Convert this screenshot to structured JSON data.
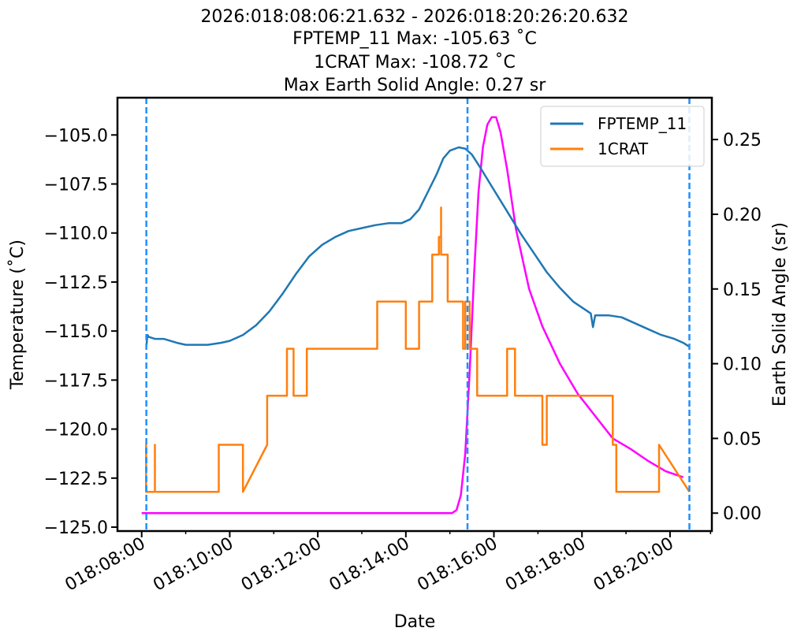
{
  "chart_data": {
    "type": "line",
    "title_lines": [
      "2026:018:08:06:21.632 - 2026:018:20:26:20.632",
      "FPTEMP_11 Max: -105.63 ˚C",
      "1CRAT Max: -108.72 ˚C",
      "Max Earth Solid Angle: 0.27 sr"
    ],
    "xlabel": "Date",
    "ylabel_left": "Temperature (˚C)",
    "ylabel_right": "Earth Solid Angle (sr)",
    "x_unit": "hours of day 018",
    "xlim": [
      7.45,
      20.95
    ],
    "ylim_left": [
      -125.2,
      -103.1
    ],
    "ylim_right": [
      -0.012,
      0.278
    ],
    "x_ticks": [
      {
        "v": 8,
        "label": "018:08:00"
      },
      {
        "v": 10,
        "label": "018:10:00"
      },
      {
        "v": 12,
        "label": "018:12:00"
      },
      {
        "v": 14,
        "label": "018:14:00"
      },
      {
        "v": 16,
        "label": "018:16:00"
      },
      {
        "v": 18,
        "label": "018:18:00"
      },
      {
        "v": 20,
        "label": "018:20:00"
      }
    ],
    "y_ticks_left": [
      {
        "v": -105.0,
        "label": "−105.0"
      },
      {
        "v": -107.5,
        "label": "−107.5"
      },
      {
        "v": -110.0,
        "label": "−110.0"
      },
      {
        "v": -112.5,
        "label": "−112.5"
      },
      {
        "v": -115.0,
        "label": "−115.0"
      },
      {
        "v": -117.5,
        "label": "−117.5"
      },
      {
        "v": -120.0,
        "label": "−120.0"
      },
      {
        "v": -122.5,
        "label": "−122.5"
      },
      {
        "v": -125.0,
        "label": "−125.0"
      }
    ],
    "y_ticks_right": [
      {
        "v": 0.0,
        "label": "0.00"
      },
      {
        "v": 0.05,
        "label": "0.05"
      },
      {
        "v": 0.1,
        "label": "0.10"
      },
      {
        "v": 0.15,
        "label": "0.15"
      },
      {
        "v": 0.2,
        "label": "0.20"
      },
      {
        "v": 0.25,
        "label": "0.25"
      }
    ],
    "vlines": [
      8.106,
      15.4,
      20.44
    ],
    "legend": {
      "placement": "top-right",
      "entries": [
        "FPTEMP_11",
        "1CRAT"
      ]
    },
    "series": [
      {
        "name": "FPTEMP_11",
        "axis": "left",
        "color": "#1f77b4",
        "x": [
          8.11,
          8.13,
          8.16,
          8.3,
          8.5,
          8.8,
          9.0,
          9.5,
          9.8,
          10.0,
          10.3,
          10.6,
          10.9,
          11.2,
          11.5,
          11.8,
          12.1,
          12.4,
          12.7,
          13.0,
          13.3,
          13.6,
          13.9,
          14.1,
          14.3,
          14.5,
          14.7,
          14.85,
          15.0,
          15.2,
          15.35,
          15.5,
          15.7,
          16.0,
          16.3,
          16.6,
          16.9,
          17.2,
          17.5,
          17.8,
          18.0,
          18.2,
          18.25,
          18.3,
          18.6,
          18.9,
          19.2,
          19.5,
          19.8,
          20.1,
          20.3,
          20.44
        ],
        "y": [
          -115.7,
          -115.2,
          -115.3,
          -115.4,
          -115.4,
          -115.6,
          -115.7,
          -115.7,
          -115.6,
          -115.5,
          -115.2,
          -114.7,
          -114.0,
          -113.1,
          -112.1,
          -111.2,
          -110.6,
          -110.2,
          -109.9,
          -109.75,
          -109.6,
          -109.5,
          -109.5,
          -109.3,
          -108.8,
          -107.9,
          -107.0,
          -106.2,
          -105.8,
          -105.63,
          -105.7,
          -106.0,
          -106.7,
          -107.8,
          -108.9,
          -110.0,
          -111.0,
          -112.0,
          -112.8,
          -113.5,
          -113.8,
          -114.1,
          -114.8,
          -114.2,
          -114.2,
          -114.3,
          -114.6,
          -114.9,
          -115.2,
          -115.4,
          -115.6,
          -115.8
        ]
      },
      {
        "name": "1CRAT",
        "axis": "left",
        "color": "#ff7f0e",
        "x": [
          8.1,
          8.1,
          8.1,
          8.3,
          8.3,
          8.3,
          9.75,
          9.75,
          10.3,
          10.3,
          10.85,
          10.85,
          11.3,
          11.3,
          11.45,
          11.45,
          11.75,
          11.75,
          13.35,
          13.35,
          14.0,
          14.0,
          14.3,
          14.3,
          14.6,
          14.6,
          14.75,
          14.75,
          14.8,
          14.8,
          14.8,
          14.95,
          14.95,
          15.3,
          15.3,
          15.35,
          15.35,
          15.45,
          15.45,
          15.62,
          15.62,
          16.3,
          16.3,
          16.48,
          16.48,
          17.1,
          17.1,
          17.2,
          17.2,
          18.7,
          18.7,
          18.78,
          18.78,
          19.75,
          19.75,
          20.44
        ],
        "y": [
          -123.2,
          -120.8,
          -123.2,
          -123.2,
          -120.8,
          -123.2,
          -123.2,
          -120.8,
          -120.8,
          -123.2,
          -120.8,
          -118.3,
          -118.3,
          -115.9,
          -115.9,
          -118.3,
          -118.3,
          -115.9,
          -115.9,
          -113.5,
          -113.5,
          -115.9,
          -115.9,
          -113.5,
          -113.5,
          -111.1,
          -111.1,
          -110.2,
          -110.2,
          -108.7,
          -111.1,
          -111.1,
          -113.5,
          -113.5,
          -115.9,
          -115.9,
          -113.5,
          -113.5,
          -115.9,
          -115.9,
          -118.3,
          -118.3,
          -115.9,
          -115.9,
          -118.3,
          -118.3,
          -120.8,
          -120.8,
          -118.3,
          -118.3,
          -120.8,
          -120.8,
          -123.2,
          -123.2,
          -120.8,
          -123.2
        ]
      },
      {
        "name": "",
        "axis": "right",
        "color": "#ff00ff",
        "x": [
          8.0,
          10.0,
          12.0,
          14.0,
          14.9,
          15.05,
          15.15,
          15.25,
          15.35,
          15.45,
          15.55,
          15.65,
          15.75,
          15.85,
          15.95,
          16.05,
          16.15,
          16.3,
          16.5,
          16.8,
          17.1,
          17.5,
          17.9,
          18.3,
          18.7,
          19.1,
          19.5,
          19.9,
          20.2,
          20.3
        ],
        "y": [
          0.0,
          0.0,
          0.0,
          0.0,
          0.0,
          0.0,
          0.002,
          0.012,
          0.04,
          0.095,
          0.16,
          0.215,
          0.245,
          0.26,
          0.265,
          0.265,
          0.255,
          0.23,
          0.19,
          0.15,
          0.125,
          0.1,
          0.08,
          0.065,
          0.05,
          0.043,
          0.035,
          0.028,
          0.025,
          0.024
        ]
      }
    ]
  }
}
